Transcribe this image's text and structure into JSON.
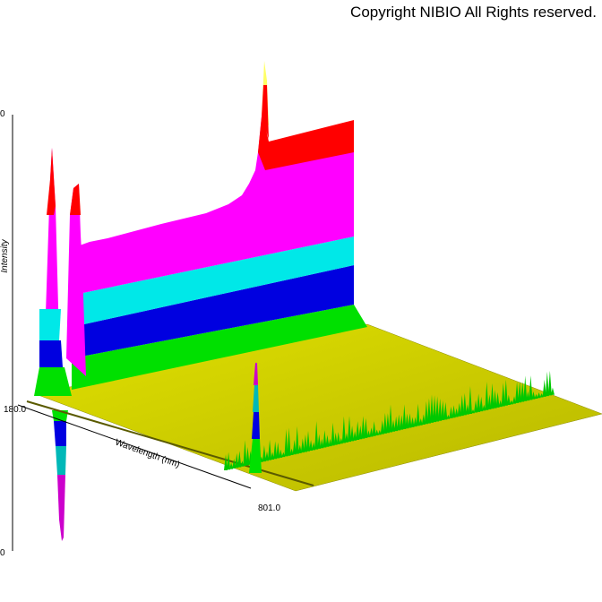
{
  "copyright": "Copyright NIBIO All Rights reserved.",
  "chart_data": {
    "type": "area",
    "view": "3d-surface",
    "title": "",
    "xlabel": "Wavelength (nm)",
    "ylabel": "Intensity",
    "x_range": [
      180.0,
      801.0
    ],
    "x_tick_labels": [
      "180.0",
      "801.0"
    ],
    "y_tick_labels": [
      "0",
      "0"
    ],
    "color_bands": [
      "#c8c800",
      "#00e000",
      "#0000e0",
      "#00e8e8",
      "#ff00ff",
      "#ff0000",
      "#ffff66"
    ],
    "floor_color": "#c8c800",
    "grid": false,
    "legend": "none",
    "series": [
      {
        "name": "",
        "peaks_nm": [
          180,
          181,
          182,
          183
        ],
        "note_visible": "sharp positive/negative peaks near the start of the wavelength axis"
      }
    ]
  }
}
